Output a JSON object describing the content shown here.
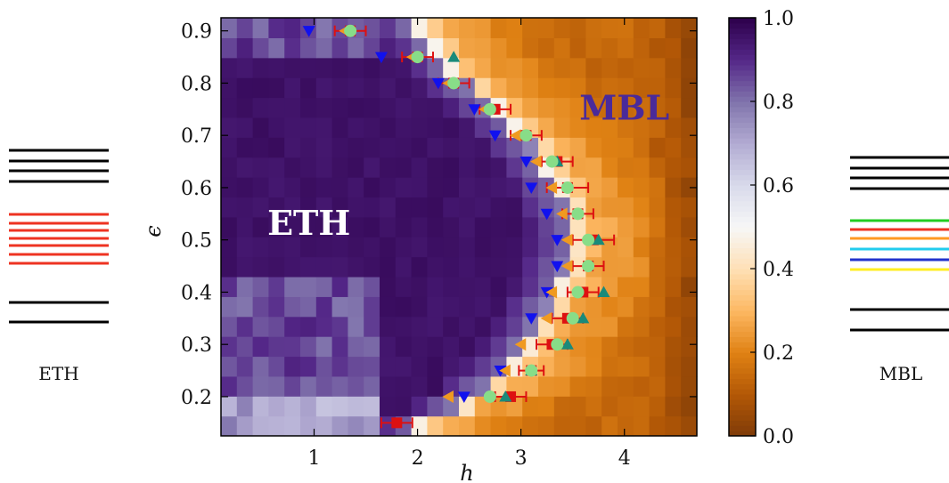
{
  "left_panel": {
    "label": "ETH",
    "levels": [
      {
        "color": "#000000"
      },
      {
        "color": "#000000"
      },
      {
        "color": "#000000"
      },
      {
        "color": "#000000"
      },
      {
        "color": "#ee3322"
      },
      {
        "color": "#ee3322"
      },
      {
        "color": "#ee3322"
      },
      {
        "color": "#ee3322"
      },
      {
        "color": "#ee3322"
      },
      {
        "color": "#ee3322"
      },
      {
        "color": "#ee3322"
      },
      {
        "color": "#000000"
      },
      {
        "color": "#000000"
      }
    ]
  },
  "right_panel": {
    "label": "MBL",
    "levels": [
      {
        "color": "#000000"
      },
      {
        "color": "#000000"
      },
      {
        "color": "#000000"
      },
      {
        "color": "#000000"
      },
      {
        "color": "#22cc22"
      },
      {
        "color": "#ee3322"
      },
      {
        "color": "#ff9922"
      },
      {
        "color": "#22ccee"
      },
      {
        "color": "#2233cc"
      },
      {
        "color": "#ffee22"
      },
      {
        "color": "#000000"
      },
      {
        "color": "#000000"
      }
    ]
  },
  "chart_data": {
    "type": "heatmap",
    "xlabel": "h",
    "ylabel": "ϵ",
    "xlim": [
      0.1,
      4.7
    ],
    "ylim": [
      0.125,
      0.925
    ],
    "x_ticks": [
      1,
      2,
      3,
      4
    ],
    "y_ticks": [
      0.2,
      0.3,
      0.4,
      0.5,
      0.6,
      0.7,
      0.8,
      0.9
    ],
    "regions": [
      {
        "text": "ETH",
        "x": 0.95,
        "y": 0.51,
        "color": "#ffffff"
      },
      {
        "text": "MBL",
        "x": 4.0,
        "y": 0.73,
        "color": "#4a2a9a"
      }
    ],
    "heatmap": {
      "x_bins": 30,
      "y_bins": 21,
      "value_range": [
        0.0,
        1.0
      ],
      "boundary": [
        [
          0.14,
          1.95
        ],
        [
          0.2,
          2.55
        ],
        [
          0.25,
          2.85
        ],
        [
          0.3,
          3.05
        ],
        [
          0.35,
          3.2
        ],
        [
          0.4,
          3.35
        ],
        [
          0.45,
          3.45
        ],
        [
          0.5,
          3.5
        ],
        [
          0.55,
          3.45
        ],
        [
          0.6,
          3.35
        ],
        [
          0.65,
          3.2
        ],
        [
          0.7,
          3.0
        ],
        [
          0.75,
          2.75
        ],
        [
          0.8,
          2.45
        ],
        [
          0.85,
          2.2
        ],
        [
          0.92,
          1.95
        ]
      ]
    },
    "colorbar": {
      "ticks": [
        "0.0",
        "0.2",
        "0.4",
        "0.6",
        "0.8",
        "1.0"
      ],
      "tick_values": [
        0.0,
        0.2,
        0.4,
        0.6,
        0.8,
        1.0
      ],
      "stops": [
        {
          "v": 0.0,
          "color": "#7f3b08"
        },
        {
          "v": 0.1,
          "color": "#b35806"
        },
        {
          "v": 0.2,
          "color": "#e08214"
        },
        {
          "v": 0.3,
          "color": "#fdb863"
        },
        {
          "v": 0.4,
          "color": "#fee0b6"
        },
        {
          "v": 0.5,
          "color": "#f7f7f7"
        },
        {
          "v": 0.6,
          "color": "#d8daeb"
        },
        {
          "v": 0.7,
          "color": "#b2abd2"
        },
        {
          "v": 0.8,
          "color": "#8073ac"
        },
        {
          "v": 0.9,
          "color": "#542788"
        },
        {
          "v": 1.0,
          "color": "#2d004b"
        }
      ]
    },
    "series": [
      {
        "marker": "square",
        "color": "#dd1111",
        "points": [
          {
            "x": 1.8,
            "y": 0.15,
            "xerr": 0.15
          },
          {
            "x": 2.9,
            "y": 0.2,
            "xerr": 0.15
          },
          {
            "x": 3.1,
            "y": 0.25,
            "xerr": 0.12
          },
          {
            "x": 3.3,
            "y": 0.3,
            "xerr": 0.15
          },
          {
            "x": 3.45,
            "y": 0.35,
            "xerr": 0.15
          },
          {
            "x": 3.6,
            "y": 0.4,
            "xerr": 0.15
          },
          {
            "x": 3.65,
            "y": 0.45,
            "xerr": 0.15
          },
          {
            "x": 3.7,
            "y": 0.5,
            "xerr": 0.2
          },
          {
            "x": 3.55,
            "y": 0.55,
            "xerr": 0.15
          },
          {
            "x": 3.45,
            "y": 0.6,
            "xerr": 0.2
          },
          {
            "x": 3.35,
            "y": 0.65,
            "xerr": 0.15
          },
          {
            "x": 3.05,
            "y": 0.7,
            "xerr": 0.15
          },
          {
            "x": 2.75,
            "y": 0.75,
            "xerr": 0.15
          },
          {
            "x": 2.35,
            "y": 0.8,
            "xerr": 0.15
          },
          {
            "x": 2.0,
            "y": 0.85,
            "xerr": 0.15
          },
          {
            "x": 1.35,
            "y": 0.9,
            "xerr": 0.15
          }
        ]
      },
      {
        "marker": "triangle-up",
        "color": "#1a8a7a",
        "points": [
          {
            "x": 2.85,
            "y": 0.2
          },
          {
            "x": 3.1,
            "y": 0.25
          },
          {
            "x": 3.45,
            "y": 0.3
          },
          {
            "x": 3.6,
            "y": 0.35
          },
          {
            "x": 3.8,
            "y": 0.4
          },
          {
            "x": 3.75,
            "y": 0.5
          },
          {
            "x": 3.35,
            "y": 0.65
          },
          {
            "x": 2.35,
            "y": 0.85
          }
        ]
      },
      {
        "marker": "triangle-down",
        "color": "#1111ee",
        "points": [
          {
            "x": 2.45,
            "y": 0.2
          },
          {
            "x": 2.8,
            "y": 0.25
          },
          {
            "x": 3.1,
            "y": 0.35
          },
          {
            "x": 3.25,
            "y": 0.4
          },
          {
            "x": 3.35,
            "y": 0.45
          },
          {
            "x": 3.35,
            "y": 0.5
          },
          {
            "x": 3.25,
            "y": 0.55
          },
          {
            "x": 3.1,
            "y": 0.6
          },
          {
            "x": 3.05,
            "y": 0.65
          },
          {
            "x": 2.75,
            "y": 0.7
          },
          {
            "x": 2.55,
            "y": 0.75
          },
          {
            "x": 2.2,
            "y": 0.8
          },
          {
            "x": 1.65,
            "y": 0.85
          },
          {
            "x": 0.95,
            "y": 0.9
          }
        ]
      },
      {
        "marker": "triangle-left",
        "color": "#f09a20",
        "points": [
          {
            "x": 2.3,
            "y": 0.2
          },
          {
            "x": 2.85,
            "y": 0.25
          },
          {
            "x": 3.0,
            "y": 0.3
          },
          {
            "x": 3.25,
            "y": 0.35
          },
          {
            "x": 3.3,
            "y": 0.4
          },
          {
            "x": 3.45,
            "y": 0.45
          },
          {
            "x": 3.45,
            "y": 0.5
          },
          {
            "x": 3.4,
            "y": 0.55
          },
          {
            "x": 3.3,
            "y": 0.6
          },
          {
            "x": 3.15,
            "y": 0.65
          },
          {
            "x": 2.95,
            "y": 0.7
          },
          {
            "x": 2.65,
            "y": 0.75
          },
          {
            "x": 2.3,
            "y": 0.8
          },
          {
            "x": 1.95,
            "y": 0.85
          },
          {
            "x": 1.3,
            "y": 0.9
          }
        ]
      },
      {
        "marker": "circle",
        "color": "#88dd88",
        "points": [
          {
            "x": 2.7,
            "y": 0.2
          },
          {
            "x": 3.1,
            "y": 0.25
          },
          {
            "x": 3.35,
            "y": 0.3
          },
          {
            "x": 3.5,
            "y": 0.35
          },
          {
            "x": 3.55,
            "y": 0.4
          },
          {
            "x": 3.65,
            "y": 0.45
          },
          {
            "x": 3.65,
            "y": 0.5
          },
          {
            "x": 3.55,
            "y": 0.55
          },
          {
            "x": 3.45,
            "y": 0.6
          },
          {
            "x": 3.3,
            "y": 0.65
          },
          {
            "x": 3.05,
            "y": 0.7
          },
          {
            "x": 2.7,
            "y": 0.75
          },
          {
            "x": 2.35,
            "y": 0.8
          },
          {
            "x": 2.0,
            "y": 0.85
          },
          {
            "x": 1.35,
            "y": 0.9
          }
        ]
      }
    ]
  }
}
